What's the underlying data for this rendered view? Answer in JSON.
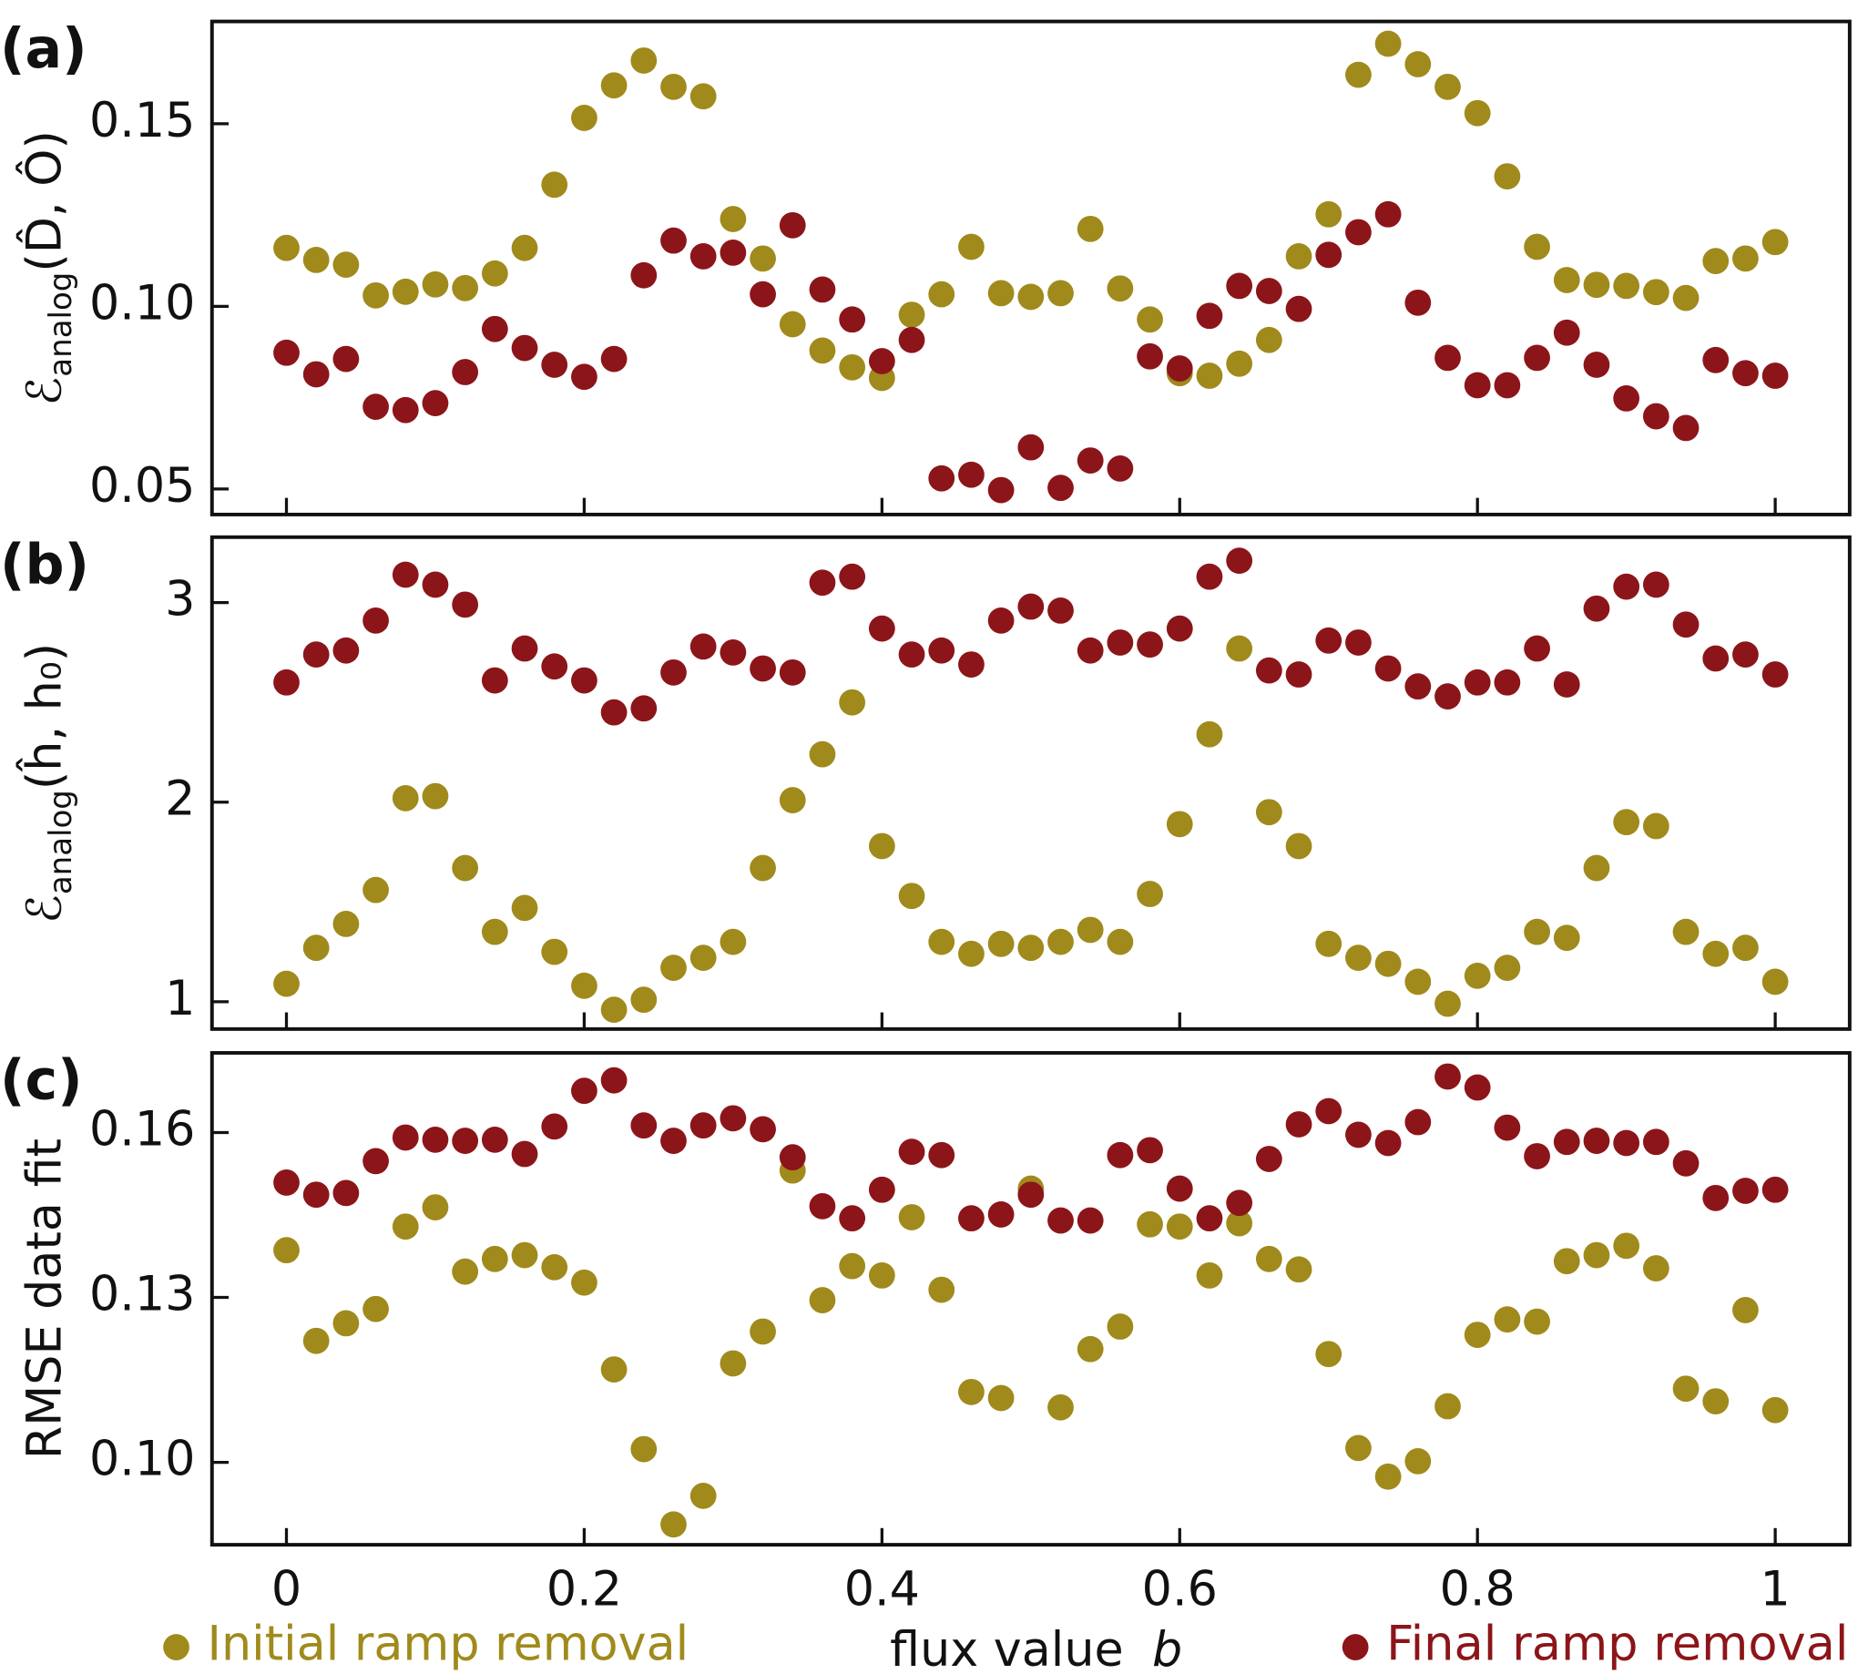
{
  "chart_data": [
    {
      "type": "scatter",
      "panel_label": "(a)",
      "ylabel": [
        "ℰ",
        "analog",
        "(D̂, Ô)"
      ],
      "x": [
        0,
        0.02,
        0.04,
        0.06,
        0.08,
        0.1,
        0.12,
        0.14,
        0.16,
        0.18,
        0.2,
        0.22,
        0.24,
        0.26,
        0.28,
        0.3,
        0.32,
        0.34,
        0.36,
        0.38,
        0.4,
        0.42,
        0.44,
        0.46,
        0.48,
        0.5,
        0.52,
        0.54,
        0.56,
        0.58,
        0.6,
        0.62,
        0.64,
        0.66,
        0.68,
        0.7,
        0.72,
        0.74,
        0.76,
        0.78,
        0.8,
        0.82,
        0.84,
        0.86,
        0.88,
        0.9,
        0.92,
        0.94,
        0.96,
        0.98,
        1
      ],
      "xlim": [
        -0.05,
        1.05
      ],
      "xticks": [
        0,
        0.2,
        0.4,
        0.6,
        0.8,
        1
      ],
      "ylim": [
        0.043,
        0.178
      ],
      "yticks": [
        0.05,
        {
          "value": 0.1,
          "label": "0.10"
        },
        0.15
      ],
      "series": [
        {
          "name": "Initial ramp removal",
          "color": "#a08a1c",
          "values": [
            0.116,
            0.1127,
            0.1114,
            0.103,
            0.104,
            0.106,
            0.105,
            0.109,
            0.116,
            0.1333,
            0.1516,
            0.1605,
            0.1673,
            0.1601,
            0.1575,
            0.1239,
            0.1131,
            0.0951,
            0.0879,
            0.0833,
            0.0804,
            0.0977,
            0.1033,
            0.1163,
            0.1036,
            0.1026,
            0.1036,
            0.1212,
            0.1049,
            0.0964,
            0.0817,
            0.081,
            0.0843,
            0.0908,
            0.1137,
            0.1252,
            0.1634,
            0.1719,
            0.1663,
            0.1601,
            0.1529,
            0.1356,
            0.1163,
            0.1072,
            0.1059,
            0.1056,
            0.1039,
            0.1023,
            0.1124,
            0.1131,
            0.1176
          ]
        },
        {
          "name": "Final ramp removal",
          "color": "#8c1519",
          "values": [
            0.0873,
            0.0814,
            0.0856,
            0.0725,
            0.0716,
            0.0735,
            0.082,
            0.0938,
            0.0886,
            0.084,
            0.0807,
            0.0856,
            0.1085,
            0.118,
            0.1137,
            0.1147,
            0.1033,
            0.1222,
            0.1046,
            0.0964,
            0.085,
            0.0908,
            0.0529,
            0.0539,
            0.0497,
            0.0614,
            0.0503,
            0.0578,
            0.0556,
            0.0863,
            0.083,
            0.0974,
            0.1056,
            0.1042,
            0.0993,
            0.1141,
            0.1203,
            0.1252,
            0.101,
            0.0859,
            0.0784,
            0.0784,
            0.0859,
            0.0928,
            0.084,
            0.0748,
            0.0699,
            0.0667,
            0.0853,
            0.0817,
            0.081
          ]
        }
      ]
    },
    {
      "type": "scatter",
      "panel_label": "(b)",
      "ylabel": [
        "ℰ",
        "analog",
        "(ĥ, h₀)"
      ],
      "x": [
        0,
        0.02,
        0.04,
        0.06,
        0.08,
        0.1,
        0.12,
        0.14,
        0.16,
        0.18,
        0.2,
        0.22,
        0.24,
        0.26,
        0.28,
        0.3,
        0.32,
        0.34,
        0.36,
        0.38,
        0.4,
        0.42,
        0.44,
        0.46,
        0.48,
        0.5,
        0.52,
        0.54,
        0.56,
        0.58,
        0.6,
        0.62,
        0.64,
        0.66,
        0.68,
        0.7,
        0.72,
        0.74,
        0.76,
        0.78,
        0.8,
        0.82,
        0.84,
        0.86,
        0.88,
        0.9,
        0.92,
        0.94,
        0.96,
        0.98,
        1
      ],
      "xlim": [
        -0.05,
        1.05
      ],
      "xticks": [
        0,
        0.2,
        0.4,
        0.6,
        0.8,
        1
      ],
      "ylim": [
        0.863,
        3.328
      ],
      "yticks": [
        1,
        2,
        3
      ],
      "series": [
        {
          "name": "Initial ramp removal",
          "color": "#a08a1c",
          "values": [
            1.09,
            1.27,
            1.39,
            1.56,
            2.02,
            2.03,
            1.67,
            1.35,
            1.47,
            1.25,
            1.08,
            0.96,
            1.01,
            1.17,
            1.22,
            1.3,
            1.67,
            2.01,
            2.24,
            2.5,
            1.78,
            1.53,
            1.3,
            1.24,
            1.29,
            1.27,
            1.3,
            1.36,
            1.3,
            1.54,
            1.89,
            2.34,
            2.77,
            1.95,
            1.78,
            1.29,
            1.22,
            1.19,
            1.1,
            0.99,
            1.13,
            1.17,
            1.35,
            1.32,
            1.67,
            1.9,
            1.88,
            1.35,
            1.24,
            1.27,
            1.1
          ]
        },
        {
          "name": "Final ramp removal",
          "color": "#8c1519",
          "values": [
            2.6,
            2.74,
            2.76,
            2.91,
            3.14,
            3.09,
            2.99,
            2.61,
            2.77,
            2.68,
            2.61,
            2.45,
            2.47,
            2.65,
            2.78,
            2.75,
            2.67,
            2.65,
            3.1,
            3.13,
            2.87,
            2.74,
            2.76,
            2.69,
            2.91,
            2.98,
            2.96,
            2.76,
            2.8,
            2.79,
            2.87,
            3.13,
            3.21,
            2.66,
            2.64,
            2.81,
            2.8,
            2.67,
            2.58,
            2.53,
            2.6,
            2.6,
            2.77,
            2.59,
            2.97,
            3.08,
            3.09,
            2.89,
            2.72,
            2.74,
            2.64
          ]
        }
      ]
    },
    {
      "type": "scatter",
      "panel_label": "(c)",
      "ylabel": [
        "RMSE data fit"
      ],
      "xlabel": [
        "flux value",
        "b"
      ],
      "x": [
        0,
        0.02,
        0.04,
        0.06,
        0.08,
        0.1,
        0.12,
        0.14,
        0.16,
        0.18,
        0.2,
        0.22,
        0.24,
        0.26,
        0.28,
        0.3,
        0.32,
        0.34,
        0.36,
        0.38,
        0.4,
        0.42,
        0.44,
        0.46,
        0.48,
        0.5,
        0.52,
        0.54,
        0.56,
        0.58,
        0.6,
        0.62,
        0.64,
        0.66,
        0.68,
        0.7,
        0.72,
        0.74,
        0.76,
        0.78,
        0.8,
        0.82,
        0.84,
        0.86,
        0.88,
        0.9,
        0.92,
        0.94,
        0.96,
        0.98,
        1
      ],
      "xlim": [
        -0.05,
        1.05
      ],
      "xticks": [
        0,
        0.2,
        0.4,
        0.6,
        0.8,
        1
      ],
      "ylim": [
        0.085,
        0.1745
      ],
      "yticks": [
        {
          "value": 0.1,
          "label": "0.10"
        },
        0.13,
        0.16
      ],
      "series": [
        {
          "name": "Initial ramp removal",
          "color": "#a08a1c",
          "values": [
            0.1386,
            0.1221,
            0.1253,
            0.1279,
            0.1429,
            0.1464,
            0.1347,
            0.137,
            0.1377,
            0.1355,
            0.1327,
            0.1169,
            0.1024,
            0.0887,
            0.0939,
            0.118,
            0.1238,
            0.1531,
            0.1295,
            0.1357,
            0.134,
            0.1446,
            0.1314,
            0.1128,
            0.1117,
            0.1498,
            0.11,
            0.1206,
            0.1247,
            0.1433,
            0.1429,
            0.134,
            0.1435,
            0.137,
            0.1351,
            0.1197,
            0.1026,
            0.0974,
            0.1002,
            0.1102,
            0.1232,
            0.126,
            0.1256,
            0.1366,
            0.1377,
            0.1394,
            0.1353,
            0.1134,
            0.1111,
            0.1277,
            0.1095
          ]
        },
        {
          "name": "Final ramp removal",
          "color": "#8c1519",
          "values": [
            0.1509,
            0.1487,
            0.149,
            0.1548,
            0.1591,
            0.1587,
            0.1585,
            0.1587,
            0.1561,
            0.1611,
            0.1676,
            0.1695,
            0.1613,
            0.1585,
            0.1613,
            0.1626,
            0.1606,
            0.1555,
            0.1466,
            0.1444,
            0.1496,
            0.1565,
            0.1559,
            0.1444,
            0.1451,
            0.1487,
            0.144,
            0.144,
            0.1559,
            0.1568,
            0.1498,
            0.1444,
            0.1472,
            0.1552,
            0.1615,
            0.1639,
            0.1596,
            0.1581,
            0.1619,
            0.1702,
            0.1682,
            0.1609,
            0.1557,
            0.1583,
            0.1585,
            0.1581,
            0.1583,
            0.1544,
            0.1481,
            0.1494,
            0.1496
          ]
        }
      ]
    }
  ]
}
